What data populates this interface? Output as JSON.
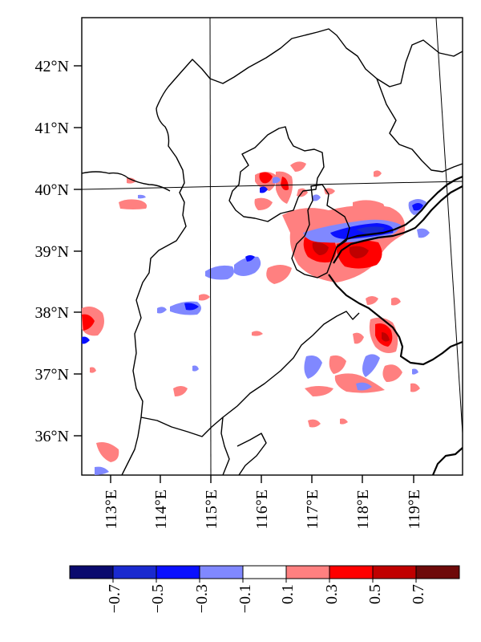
{
  "map": {
    "lat_labels": [
      "42°N",
      "41°N",
      "40°N",
      "39°N",
      "38°N",
      "37°N",
      "36°N"
    ],
    "lon_labels": [
      "113°E",
      "114°E",
      "115°E",
      "116°E",
      "117°E",
      "118°E",
      "119°E"
    ],
    "gridlines": [
      "40°N",
      "115°E"
    ]
  },
  "colorbar": {
    "colors": [
      "#0a0a6e",
      "#1a2acf",
      "#0a10ff",
      "#8088ff",
      "#ffffff",
      "#ff8080",
      "#ff0000",
      "#c00000",
      "#6e0a0a"
    ],
    "labels": [
      "−0.7",
      "−0.5",
      "−0.3",
      "−0.1",
      "0.1",
      "0.3",
      "0.5",
      "0.7"
    ]
  }
}
